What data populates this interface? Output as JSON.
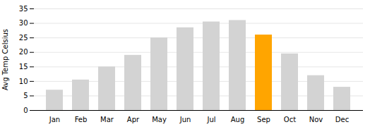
{
  "chart_data": {
    "type": "bar",
    "ylabel": "Avg Temp Celsius",
    "categories": [
      "Jan",
      "Feb",
      "Mar",
      "Apr",
      "May",
      "Jun",
      "Jul",
      "Aug",
      "Sep",
      "Oct",
      "Nov",
      "Dec"
    ],
    "values": [
      7,
      10.5,
      15,
      19,
      25,
      28.5,
      30.5,
      31,
      26,
      19.5,
      12,
      8
    ],
    "colors": [
      "#d3d3d3",
      "#d3d3d3",
      "#d3d3d3",
      "#d3d3d3",
      "#d3d3d3",
      "#d3d3d3",
      "#d3d3d3",
      "#d3d3d3",
      "#ffa500",
      "#d3d3d3",
      "#d3d3d3",
      "#d3d3d3"
    ],
    "ylim": [
      0,
      35
    ],
    "yticks": [
      0,
      5,
      10,
      15,
      20,
      25,
      30,
      35
    ],
    "grid": true
  }
}
